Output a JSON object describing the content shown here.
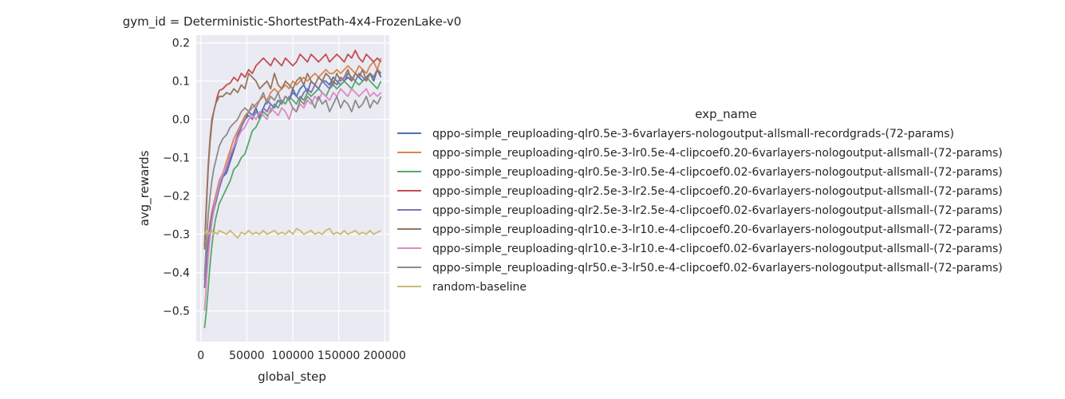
{
  "chart_data": {
    "type": "line",
    "title": "gym_id = Deterministic-ShortestPath-4x4-FrozenLake-v0",
    "xlabel": "global_step",
    "ylabel": "avg_rewards",
    "xlim": [
      -5000,
      205000
    ],
    "ylim": [
      -0.58,
      0.22
    ],
    "xticks": [
      0,
      50000,
      100000,
      150000,
      200000
    ],
    "xtick_labels": [
      "0",
      "50000",
      "100000",
      "150000",
      "200000"
    ],
    "yticks": [
      -0.5,
      -0.4,
      -0.3,
      -0.2,
      -0.1,
      0.0,
      0.1,
      0.2
    ],
    "ytick_labels": [
      "−0.5",
      "−0.4",
      "−0.3",
      "−0.2",
      "−0.1",
      "0.0",
      "0.1",
      "0.2"
    ],
    "grid": true,
    "legend_title": "exp_name",
    "legend_position": "right",
    "x": [
      4000,
      6000,
      8000,
      10000,
      12000,
      14000,
      16000,
      18000,
      20000,
      24000,
      28000,
      32000,
      36000,
      40000,
      44000,
      48000,
      52000,
      56000,
      60000,
      64000,
      68000,
      72000,
      76000,
      80000,
      84000,
      88000,
      92000,
      96000,
      100000,
      104000,
      108000,
      112000,
      116000,
      120000,
      124000,
      128000,
      132000,
      136000,
      140000,
      144000,
      148000,
      152000,
      156000,
      160000,
      164000,
      168000,
      172000,
      176000,
      180000,
      184000,
      188000,
      192000,
      196000
    ],
    "series": [
      {
        "name": "qppo-simple_reuploading-qlr0.5e-3-6varlayers-nologoutput-allsmall-recordgrads-(72-params)",
        "color": "#4c72b0",
        "values": [
          -0.44,
          -0.38,
          -0.33,
          -0.29,
          -0.26,
          -0.24,
          -0.22,
          -0.2,
          -0.18,
          -0.15,
          -0.14,
          -0.11,
          -0.08,
          -0.05,
          -0.02,
          0.0,
          0.02,
          0.01,
          0.03,
          0.0,
          0.03,
          0.05,
          0.04,
          0.03,
          0.05,
          0.04,
          0.06,
          0.05,
          0.08,
          0.06,
          0.08,
          0.09,
          0.07,
          0.1,
          0.09,
          0.08,
          0.1,
          0.1,
          0.09,
          0.11,
          0.1,
          0.09,
          0.1,
          0.11,
          0.1,
          0.12,
          0.11,
          0.1,
          0.11,
          0.12,
          0.1,
          0.13,
          0.11
        ]
      },
      {
        "name": "qppo-simple_reuploading-qlr0.5e-3-lr0.5e-4-clipcoef0.20-6varlayers-nologoutput-allsmall-(72-params)",
        "color": "#dd8452",
        "values": [
          -0.42,
          -0.36,
          -0.31,
          -0.27,
          -0.24,
          -0.22,
          -0.2,
          -0.18,
          -0.16,
          -0.14,
          -0.11,
          -0.08,
          -0.05,
          -0.03,
          -0.01,
          0.01,
          0.02,
          0.03,
          0.04,
          0.05,
          0.06,
          0.05,
          0.07,
          0.08,
          0.07,
          0.08,
          0.09,
          0.08,
          0.1,
          0.09,
          0.1,
          0.11,
          0.1,
          0.11,
          0.12,
          0.11,
          0.12,
          0.13,
          0.12,
          0.12,
          0.13,
          0.12,
          0.13,
          0.14,
          0.13,
          0.12,
          0.14,
          0.13,
          0.12,
          0.14,
          0.15,
          0.13,
          0.16
        ]
      },
      {
        "name": "qppo-simple_reuploading-qlr0.5e-3-lr0.5e-4-clipcoef0.02-6varlayers-nologoutput-allsmall-(72-params)",
        "color": "#55a868",
        "values": [
          -0.545,
          -0.5,
          -0.44,
          -0.38,
          -0.33,
          -0.29,
          -0.26,
          -0.24,
          -0.22,
          -0.2,
          -0.18,
          -0.16,
          -0.13,
          -0.12,
          -0.1,
          -0.09,
          -0.06,
          -0.03,
          -0.02,
          0.0,
          0.02,
          0.01,
          0.02,
          0.04,
          0.03,
          0.05,
          0.04,
          0.06,
          0.05,
          0.04,
          0.06,
          0.05,
          0.07,
          0.06,
          0.07,
          0.08,
          0.07,
          0.06,
          0.08,
          0.09,
          0.08,
          0.09,
          0.1,
          0.09,
          0.08,
          0.1,
          0.09,
          0.1,
          0.11,
          0.1,
          0.09,
          0.08,
          0.1
        ]
      },
      {
        "name": "qppo-simple_reuploading-qlr2.5e-3-lr2.5e-4-clipcoef0.20-6varlayers-nologoutput-allsmall-(72-params)",
        "color": "#c44e52",
        "values": [
          -0.33,
          -0.22,
          -0.12,
          -0.05,
          0.0,
          0.02,
          0.04,
          0.06,
          0.075,
          0.08,
          0.09,
          0.095,
          0.11,
          0.1,
          0.12,
          0.11,
          0.13,
          0.12,
          0.14,
          0.15,
          0.16,
          0.15,
          0.14,
          0.16,
          0.15,
          0.14,
          0.16,
          0.15,
          0.14,
          0.15,
          0.17,
          0.16,
          0.15,
          0.17,
          0.16,
          0.15,
          0.16,
          0.17,
          0.15,
          0.16,
          0.17,
          0.16,
          0.15,
          0.17,
          0.16,
          0.18,
          0.16,
          0.15,
          0.17,
          0.16,
          0.15,
          0.16,
          0.15
        ]
      },
      {
        "name": "qppo-simple_reuploading-qlr2.5e-3-lr2.5e-4-clipcoef0.02-6varlayers-nologoutput-allsmall-(72-params)",
        "color": "#8172b3",
        "values": [
          -0.44,
          -0.37,
          -0.32,
          -0.28,
          -0.25,
          -0.23,
          -0.21,
          -0.19,
          -0.17,
          -0.15,
          -0.13,
          -0.1,
          -0.07,
          -0.04,
          -0.02,
          0.0,
          0.01,
          0.0,
          0.02,
          0.01,
          0.03,
          0.02,
          0.04,
          0.03,
          0.05,
          0.04,
          0.06,
          0.05,
          0.07,
          0.06,
          0.05,
          0.07,
          0.08,
          0.07,
          0.09,
          0.08,
          0.1,
          0.09,
          0.08,
          0.1,
          0.09,
          0.11,
          0.1,
          0.12,
          0.11,
          0.1,
          0.12,
          0.11,
          0.1,
          0.12,
          0.11,
          0.13,
          0.12
        ]
      },
      {
        "name": "qppo-simple_reuploading-qlr10.e-3-lr10.e-4-clipcoef0.20-6varlayers-nologoutput-allsmall-(72-params)",
        "color": "#937860",
        "values": [
          -0.34,
          -0.23,
          -0.13,
          -0.06,
          -0.01,
          0.02,
          0.04,
          0.05,
          0.06,
          0.06,
          0.07,
          0.065,
          0.08,
          0.07,
          0.09,
          0.08,
          0.12,
          0.11,
          0.1,
          0.08,
          0.09,
          0.1,
          0.08,
          0.12,
          0.09,
          0.08,
          0.1,
          0.09,
          0.08,
          0.1,
          0.11,
          0.09,
          0.12,
          0.1,
          0.09,
          0.11,
          0.1,
          0.12,
          0.11,
          0.09,
          0.12,
          0.1,
          0.11,
          0.13,
          0.1,
          0.12,
          0.11,
          0.13,
          0.1,
          0.12,
          0.11,
          0.13,
          0.12
        ]
      },
      {
        "name": "qppo-simple_reuploading-qlr10.e-3-lr10.e-4-clipcoef0.02-6varlayers-nologoutput-allsmall-(72-params)",
        "color": "#da8bc3",
        "values": [
          -0.5,
          -0.43,
          -0.36,
          -0.31,
          -0.27,
          -0.24,
          -0.21,
          -0.19,
          -0.17,
          -0.14,
          -0.12,
          -0.09,
          -0.07,
          -0.05,
          -0.03,
          -0.02,
          0.0,
          0.01,
          0.0,
          0.02,
          0.01,
          0.0,
          0.03,
          0.02,
          0.01,
          0.03,
          0.02,
          0.0,
          0.03,
          0.02,
          0.04,
          0.03,
          0.05,
          0.04,
          0.06,
          0.05,
          0.07,
          0.06,
          0.05,
          0.07,
          0.06,
          0.08,
          0.07,
          0.06,
          0.08,
          0.07,
          0.06,
          0.07,
          0.08,
          0.06,
          0.07,
          0.06,
          0.07
        ]
      },
      {
        "name": "qppo-simple_reuploading-qlr50.e-3-lr50.e-4-clipcoef0.02-6varlayers-nologoutput-allsmall-(72-params)",
        "color": "#8c8c8c",
        "values": [
          -0.41,
          -0.32,
          -0.25,
          -0.2,
          -0.16,
          -0.13,
          -0.11,
          -0.09,
          -0.07,
          -0.05,
          -0.04,
          -0.02,
          -0.01,
          0.0,
          0.02,
          0.03,
          0.02,
          0.04,
          0.03,
          0.05,
          0.07,
          0.04,
          0.06,
          0.05,
          0.07,
          0.04,
          0.06,
          0.05,
          0.03,
          0.02,
          0.05,
          0.04,
          0.06,
          0.05,
          0.03,
          0.06,
          0.04,
          0.05,
          0.02,
          0.04,
          0.06,
          0.03,
          0.05,
          0.04,
          0.02,
          0.05,
          0.03,
          0.04,
          0.06,
          0.03,
          0.05,
          0.04,
          0.06
        ]
      },
      {
        "name": "random-baseline",
        "color": "#ccb974",
        "values": [
          -0.3,
          -0.29,
          -0.3,
          -0.295,
          -0.29,
          -0.3,
          -0.295,
          -0.3,
          -0.29,
          -0.295,
          -0.3,
          -0.29,
          -0.3,
          -0.31,
          -0.295,
          -0.3,
          -0.29,
          -0.3,
          -0.295,
          -0.3,
          -0.29,
          -0.3,
          -0.295,
          -0.29,
          -0.3,
          -0.295,
          -0.3,
          -0.29,
          -0.3,
          -0.285,
          -0.29,
          -0.3,
          -0.295,
          -0.29,
          -0.3,
          -0.295,
          -0.3,
          -0.29,
          -0.285,
          -0.3,
          -0.295,
          -0.3,
          -0.29,
          -0.3,
          -0.295,
          -0.29,
          -0.3,
          -0.295,
          -0.3,
          -0.29,
          -0.3,
          -0.295,
          -0.29
        ]
      }
    ]
  }
}
